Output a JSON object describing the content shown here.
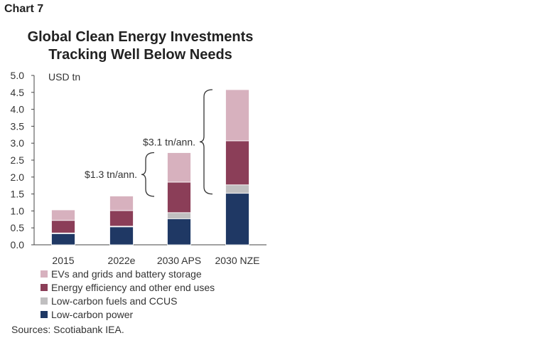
{
  "header": {
    "chart_label": "Chart 7",
    "title_line1": "Global Clean Energy Investments",
    "title_line2": "Tracking Well Below Needs"
  },
  "colors": {
    "low_carbon_power": "#1f3864",
    "low_carbon_fuels": "#c0bfc0",
    "energy_efficiency": "#8b3e58",
    "evs_grids_storage": "#d7b1be"
  },
  "chart_data": {
    "type": "bar",
    "stacked": true,
    "title": "Global Clean Energy Investments Tracking Well Below Needs",
    "ylabel": "USD tn",
    "ylim": [
      0,
      5
    ],
    "yticks": [
      "0.0",
      "0.5",
      "1.0",
      "1.5",
      "2.0",
      "2.5",
      "3.0",
      "3.5",
      "4.0",
      "4.5",
      "5.0"
    ],
    "grid": false,
    "legend_position": "bottom",
    "categories": [
      "2015",
      "2022e",
      "2030 APS",
      "2030 NZE"
    ],
    "series": [
      {
        "name": "Low-carbon power",
        "values": [
          0.33,
          0.53,
          0.77,
          1.52
        ]
      },
      {
        "name": "Low-carbon fuels and CCUS",
        "values": [
          0.02,
          0.02,
          0.18,
          0.25
        ]
      },
      {
        "name": "Energy efficiency and other end uses",
        "values": [
          0.37,
          0.46,
          0.9,
          1.3
        ]
      },
      {
        "name": "EVs and grids and battery storage",
        "values": [
          0.31,
          0.43,
          0.87,
          1.51
        ]
      }
    ],
    "annotations": [
      {
        "text": "$1.3 tn/ann.",
        "from": 1.43,
        "to": 2.72
      },
      {
        "text": "$3.1 tn/ann.",
        "from": 1.5,
        "to": 4.58
      }
    ]
  },
  "legend": {
    "items": [
      {
        "label": "EVs and grids and battery storage",
        "color": "#d7b1be"
      },
      {
        "label": "Energy efficiency and other end uses",
        "color": "#8b3e58"
      },
      {
        "label": "Low-carbon fuels and CCUS",
        "color": "#c0bfc0"
      },
      {
        "label": "Low-carbon power",
        "color": "#1f3864"
      }
    ]
  },
  "footer": {
    "source": "Sources: Scotiabank IEA."
  }
}
